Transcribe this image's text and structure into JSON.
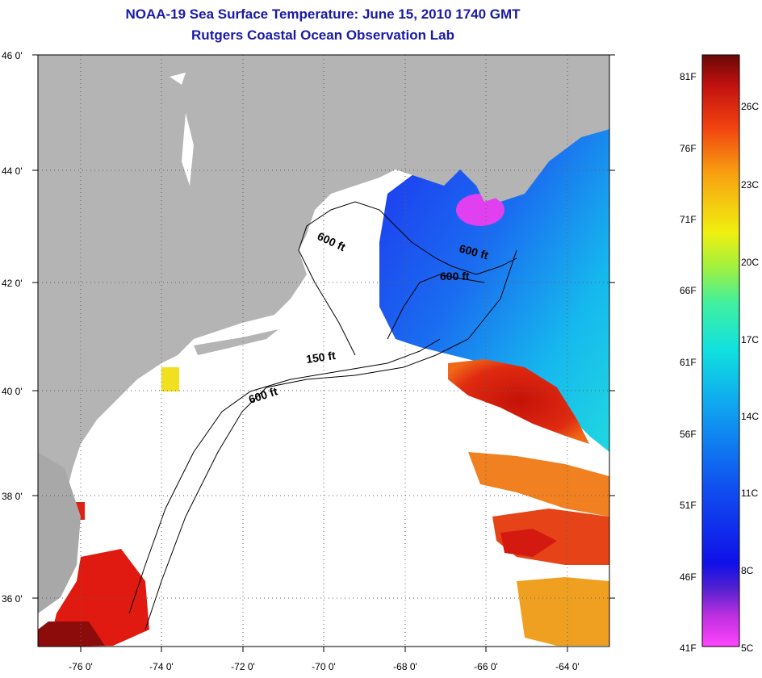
{
  "title": {
    "line1": "NOAA-19 Sea Surface Temperature:  June 15, 2010 1740 GMT",
    "line2": "Rutgers Coastal Ocean Observation Lab"
  },
  "axes": {
    "lat_labels": [
      "46 0'",
      "44 0'",
      "42 0'",
      "40 0'",
      "38 0'",
      "36 0'"
    ],
    "lon_labels": [
      "-76 0'",
      "-74 0'",
      "-72 0'",
      "-70 0'",
      "-68 0'",
      "-66 0'",
      "-64 0'"
    ],
    "lat_range": [
      35.0,
      46.0
    ],
    "lon_range": [
      -77.0,
      -63.0
    ]
  },
  "contour_labels": {
    "c1": "600 ft",
    "c2": "600 ft",
    "c3": "600 ft",
    "c4": "150 ft",
    "c5": "600 ft"
  },
  "colorbar": {
    "fahrenheit": [
      "81F",
      "76F",
      "71F",
      "66F",
      "61F",
      "56F",
      "51F",
      "46F",
      "41F"
    ],
    "celsius": [
      "26C",
      "23C",
      "20C",
      "17C",
      "14C",
      "11C",
      "8C",
      "5C"
    ]
  },
  "colors": {
    "land": "#b4b4b4",
    "no_data": "#ffffff",
    "cold": "#1a2bea",
    "warm": "#d41a10",
    "title": "#1a1aa8"
  }
}
